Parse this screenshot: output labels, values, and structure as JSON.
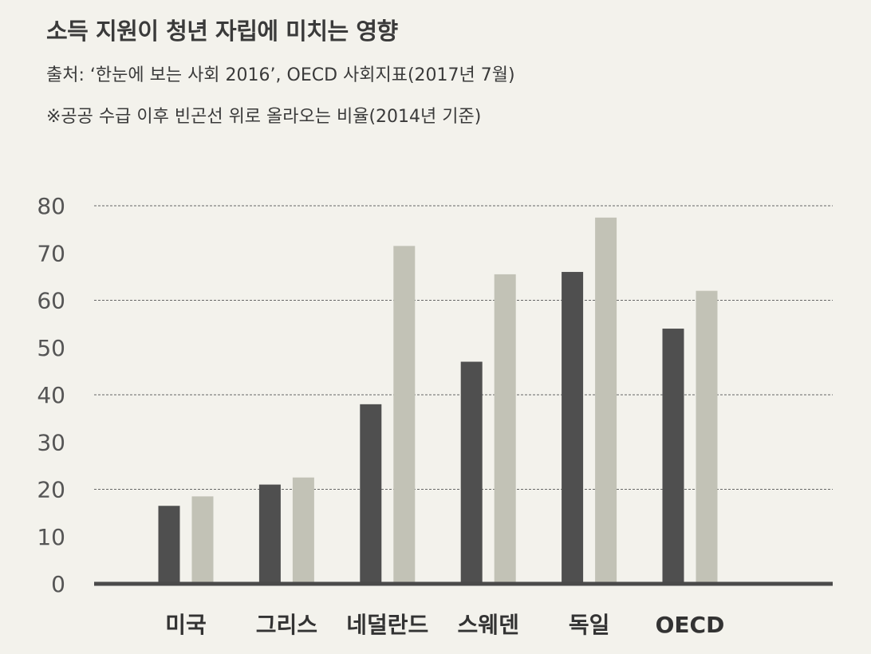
{
  "header": {
    "title": "소득 지원이 청년 자립에 미치는 영향",
    "source": "출처: ‘한눈에 보는 사회 2016’, OECD 사회지표(2017년 7월)",
    "note": "※공공 수급 이후 빈곤선 위로 올라오는 비율(2014년 기준)"
  },
  "chart_data": {
    "type": "bar",
    "title": "소득 지원이 청년 자립에 미치는 영향",
    "categories": [
      "미국",
      "그리스",
      "네덜란드",
      "스웨덴",
      "독일",
      "OECD"
    ],
    "series": [
      {
        "values": [
          16.5,
          21,
          38,
          47,
          66,
          54
        ],
        "color": "#4f4f4f"
      },
      {
        "values": [
          18.5,
          22.5,
          71.5,
          65.5,
          77.5,
          62
        ],
        "color": "#c2c2b6"
      }
    ],
    "ylim": [
      0,
      80
    ],
    "yticks": [
      0,
      10,
      20,
      30,
      40,
      50,
      60,
      70,
      80
    ],
    "grid": true,
    "xlabel": "",
    "ylabel": ""
  }
}
